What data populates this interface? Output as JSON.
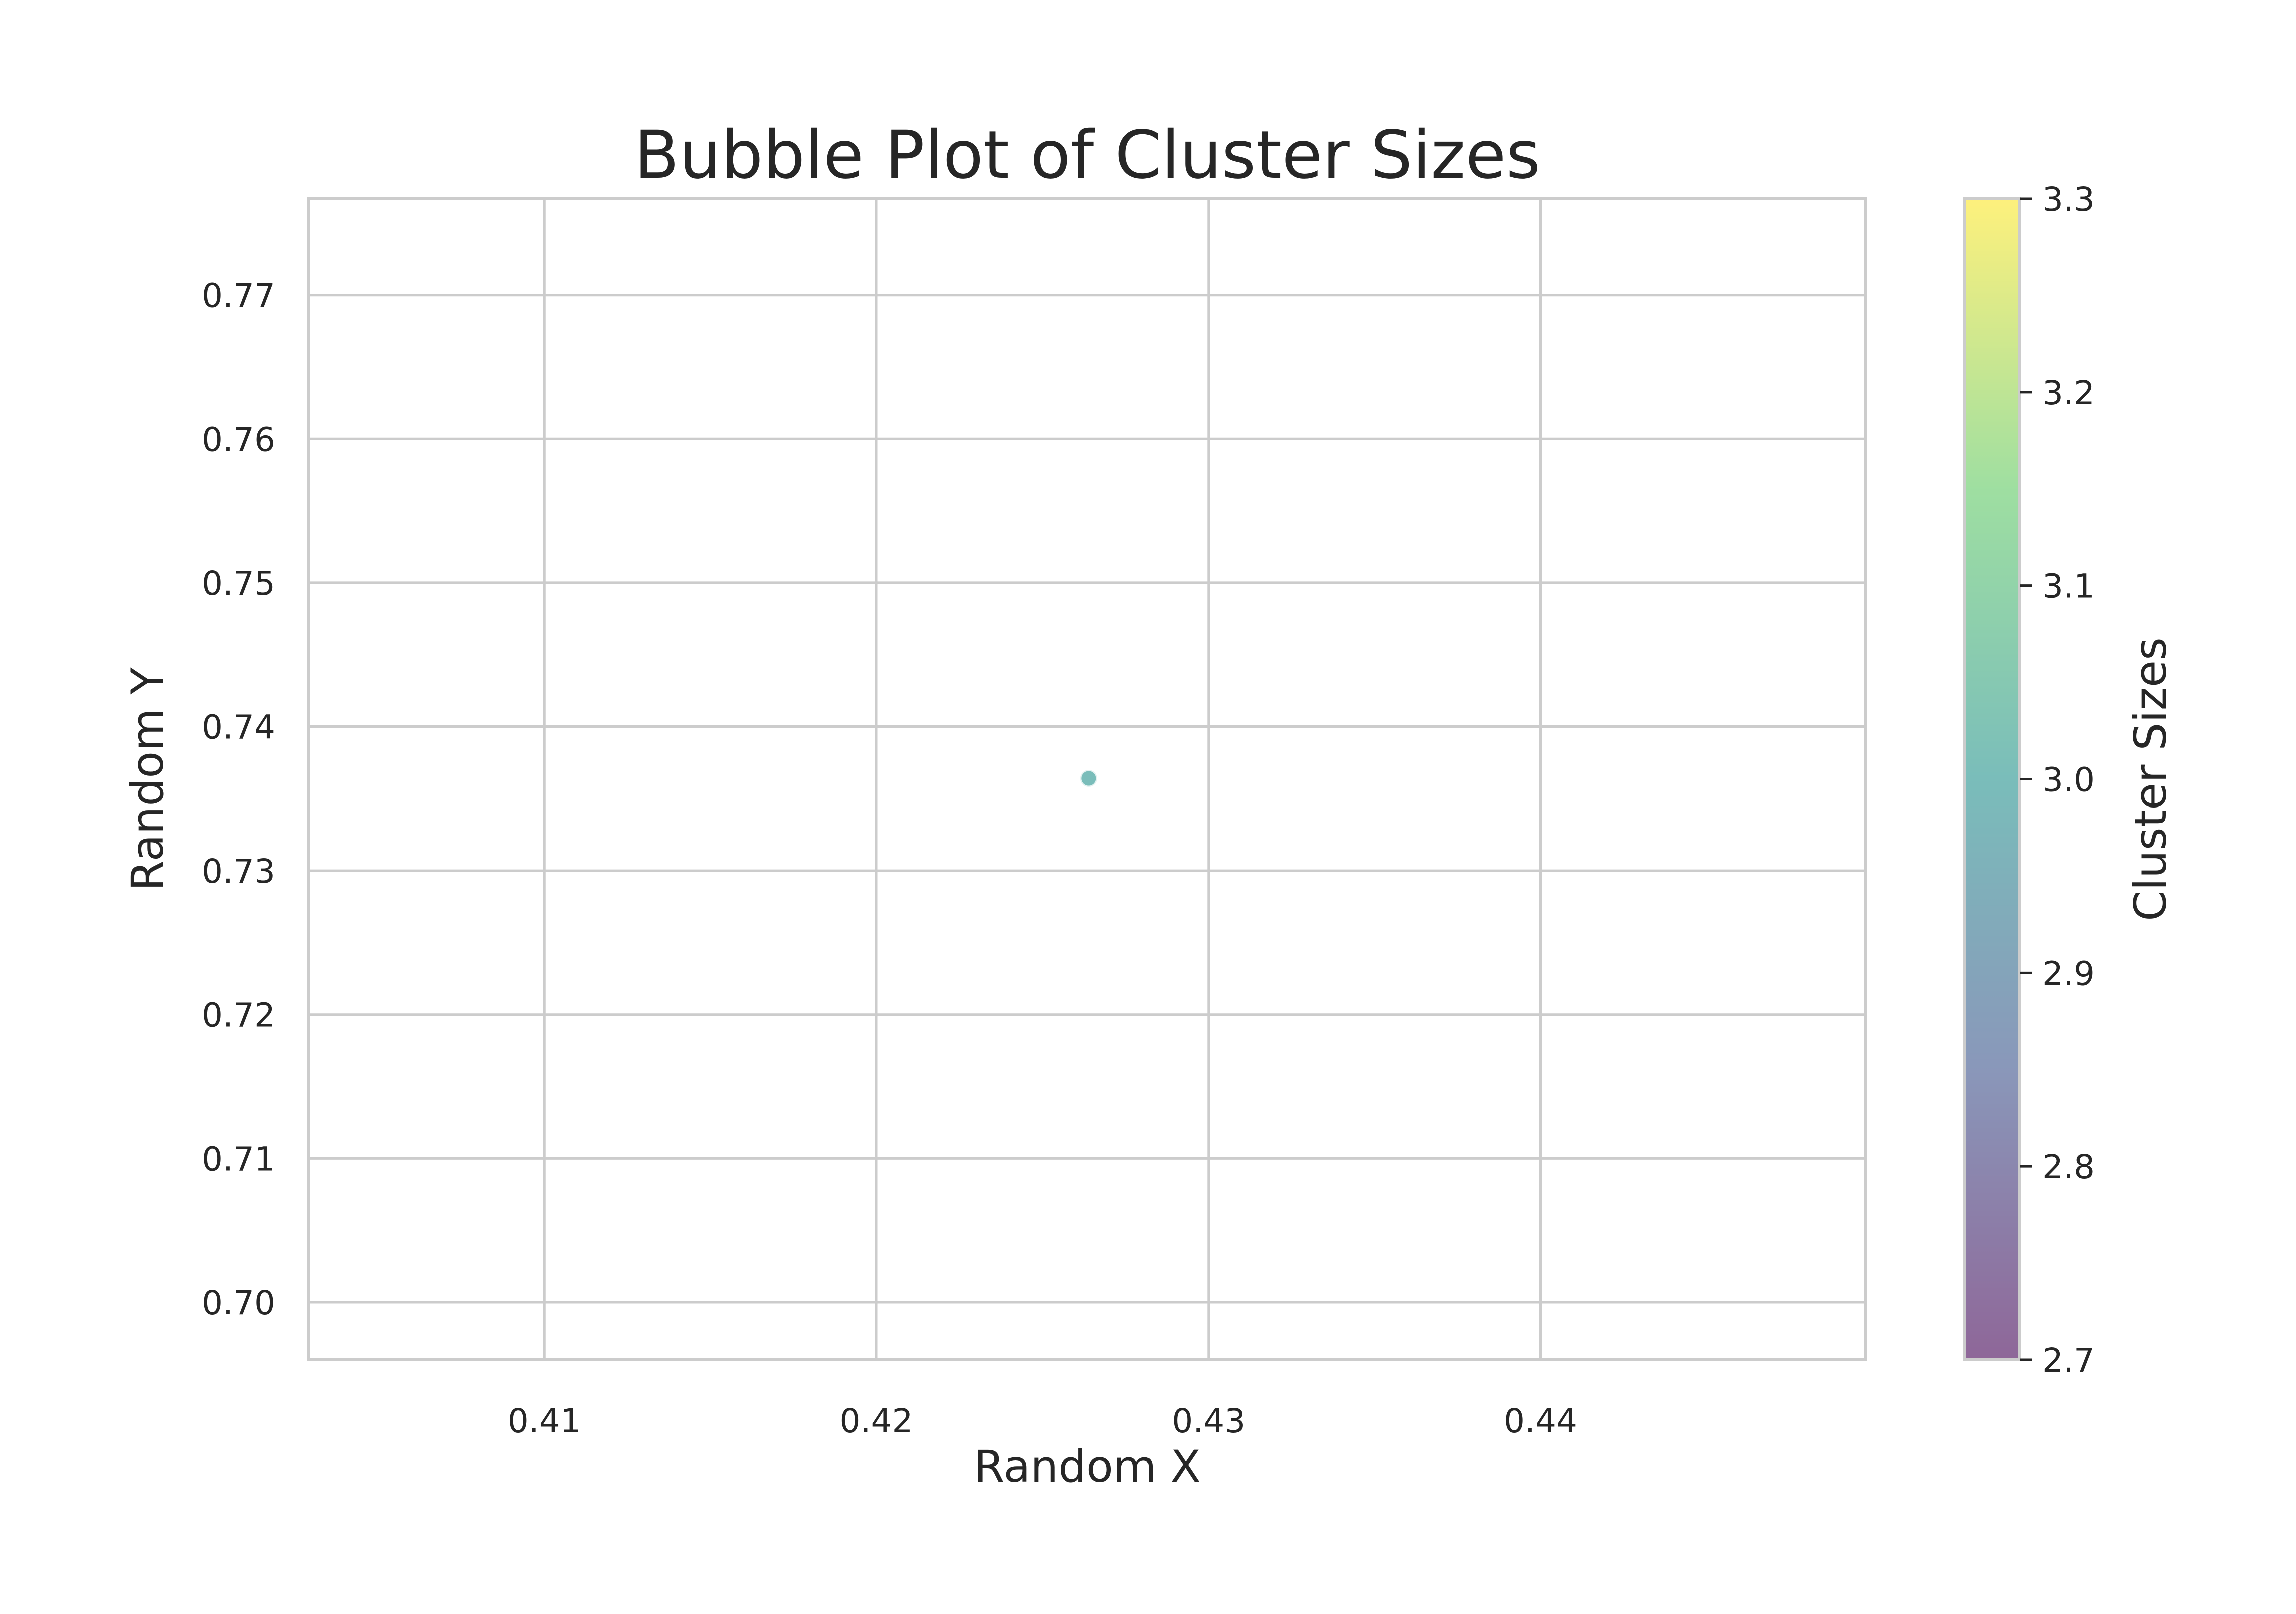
{
  "chart_data": {
    "type": "scatter",
    "title": "Bubble Plot of Cluster Sizes",
    "xlabel": "Random X",
    "ylabel": "Random Y",
    "xlim": [
      0.4029,
      0.4498
    ],
    "ylim": [
      0.696,
      0.7767
    ],
    "xticks": [
      0.41,
      0.42,
      0.43,
      0.44
    ],
    "xtick_labels": [
      "0.41",
      "0.42",
      "0.43",
      "0.44"
    ],
    "yticks": [
      0.7,
      0.71,
      0.72,
      0.73,
      0.74,
      0.75,
      0.76,
      0.77
    ],
    "ytick_labels": [
      "0.70",
      "0.71",
      "0.72",
      "0.73",
      "0.74",
      "0.75",
      "0.76",
      "0.77"
    ],
    "grid": true,
    "points": [
      {
        "x": 0.4264,
        "y": 0.7364,
        "value": 3.0
      }
    ],
    "colorbar": {
      "label": "Cluster Sizes",
      "range": [
        2.7,
        3.3
      ],
      "ticks": [
        2.7,
        2.8,
        2.9,
        3.0,
        3.1,
        3.2,
        3.3
      ],
      "tick_labels": [
        "2.7",
        "2.8",
        "2.9",
        "3.0",
        "3.1",
        "3.2",
        "3.3"
      ],
      "colormap": [
        "#440154",
        "#3b528b",
        "#21918c",
        "#5ec962",
        "#fde725"
      ]
    },
    "colors": {
      "grid": "#cccccc",
      "frame": "#cccccc",
      "text": "#262626"
    }
  }
}
